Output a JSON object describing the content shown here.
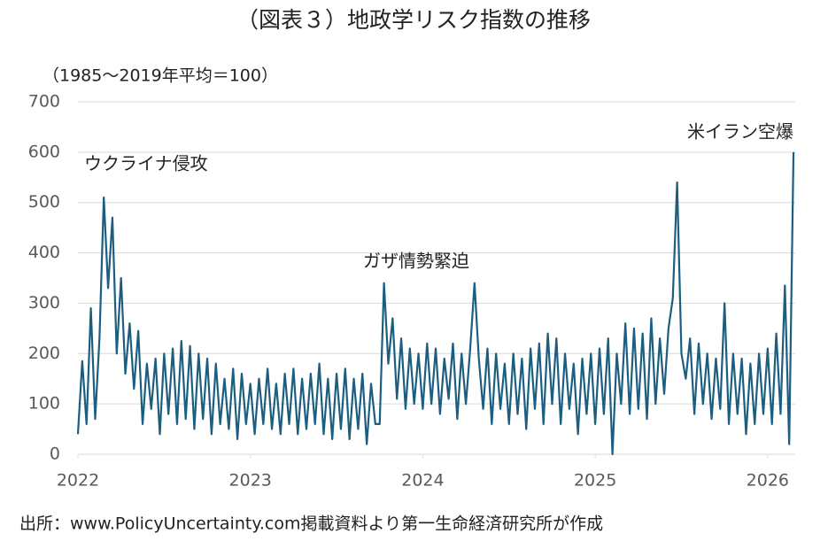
{
  "chart_data": {
    "type": "line",
    "title": "（図表３）地政学リスク指数の推移",
    "y_label": "（1985～2019年平均＝100）",
    "source": "出所：www.PolicyUncertainty.com掲載資料より第一生命経済研究所が作成",
    "annotations": [
      "ウクライナ侵攻",
      "ガザ情勢緊迫",
      "米イラン空爆"
    ],
    "color": "#1b5e80",
    "grid": true,
    "xlim": [
      2022,
      2026.16
    ],
    "xticks": [
      2022,
      2023,
      2024,
      2025,
      2026
    ],
    "ylim": [
      0,
      700
    ],
    "yticks": [
      0,
      100,
      200,
      300,
      400,
      500,
      600,
      700
    ],
    "x": [
      2022,
      2022.025,
      2022.05,
      2022.075,
      2022.1,
      2022.125,
      2022.15,
      2022.175,
      2022.2,
      2022.225,
      2022.25,
      2022.275,
      2022.3,
      2022.325,
      2022.35,
      2022.375,
      2022.4,
      2022.425,
      2022.45,
      2022.475,
      2022.5,
      2022.525,
      2022.55,
      2022.575,
      2022.6,
      2022.625,
      2022.65,
      2022.675,
      2022.7,
      2022.725,
      2022.75,
      2022.775,
      2022.8,
      2022.825,
      2022.85,
      2022.875,
      2022.9,
      2022.925,
      2022.95,
      2022.975,
      2023,
      2023.025,
      2023.05,
      2023.075,
      2023.1,
      2023.125,
      2023.15,
      2023.175,
      2023.2,
      2023.225,
      2023.25,
      2023.275,
      2023.3,
      2023.325,
      2023.35,
      2023.375,
      2023.4,
      2023.425,
      2023.45,
      2023.475,
      2023.5,
      2023.525,
      2023.55,
      2023.575,
      2023.6,
      2023.625,
      2023.65,
      2023.675,
      2023.7,
      2023.725,
      2023.75,
      2023.775,
      2023.8,
      2023.825,
      2023.85,
      2023.875,
      2023.9,
      2023.925,
      2023.95,
      2023.975,
      2024,
      2024.025,
      2024.05,
      2024.075,
      2024.1,
      2024.125,
      2024.15,
      2024.175,
      2024.2,
      2024.225,
      2024.25,
      2024.275,
      2024.3,
      2024.325,
      2024.35,
      2024.375,
      2024.4,
      2024.425,
      2024.45,
      2024.475,
      2024.5,
      2024.525,
      2024.55,
      2024.575,
      2024.6,
      2024.625,
      2024.65,
      2024.675,
      2024.7,
      2024.725,
      2024.75,
      2024.775,
      2024.8,
      2024.825,
      2024.85,
      2024.875,
      2024.9,
      2024.925,
      2024.95,
      2024.975,
      2025,
      2025.025,
      2025.05,
      2025.075,
      2025.1,
      2025.125,
      2025.15,
      2025.175,
      2025.2,
      2025.225,
      2025.25,
      2025.275,
      2025.3,
      2025.325,
      2025.35,
      2025.375,
      2025.4,
      2025.425,
      2025.45,
      2025.475,
      2025.5,
      2025.525,
      2025.55,
      2025.575,
      2025.6,
      2025.625,
      2025.65,
      2025.675,
      2025.7,
      2025.725,
      2025.75,
      2025.775,
      2025.8,
      2025.825,
      2025.85,
      2025.875,
      2025.9,
      2025.925,
      2025.95,
      2025.975,
      2026,
      2026.025,
      2026.05,
      2026.075,
      2026.1,
      2026.125,
      2026.15
    ],
    "values": [
      40,
      185,
      60,
      290,
      70,
      230,
      510,
      330,
      470,
      200,
      350,
      160,
      260,
      130,
      245,
      60,
      180,
      90,
      190,
      40,
      200,
      80,
      210,
      60,
      225,
      70,
      215,
      50,
      200,
      70,
      190,
      40,
      180,
      60,
      150,
      50,
      170,
      30,
      160,
      60,
      140,
      40,
      150,
      60,
      170,
      50,
      140,
      40,
      160,
      60,
      170,
      40,
      150,
      50,
      160,
      60,
      180,
      40,
      150,
      30,
      160,
      50,
      170,
      30,
      150,
      50,
      160,
      20,
      140,
      60,
      60,
      340,
      180,
      270,
      110,
      230,
      90,
      210,
      100,
      200,
      90,
      220,
      100,
      210,
      80,
      190,
      110,
      220,
      70,
      200,
      100,
      210,
      340,
      190,
      90,
      210,
      60,
      200,
      90,
      180,
      60,
      200,
      80,
      190,
      50,
      210,
      90,
      220,
      60,
      240,
      100,
      230,
      60,
      200,
      90,
      180,
      40,
      190,
      80,
      200,
      60,
      210,
      80,
      230,
      0,
      200,
      100,
      260,
      80,
      250,
      90,
      240,
      70,
      270,
      100,
      230,
      120,
      250,
      310,
      540,
      200,
      150,
      230,
      80,
      220,
      100,
      200,
      70,
      190,
      90,
      300,
      60,
      200,
      80,
      190,
      40,
      180,
      60,
      200,
      80,
      210,
      60,
      240,
      80,
      335,
      20,
      600
    ]
  }
}
